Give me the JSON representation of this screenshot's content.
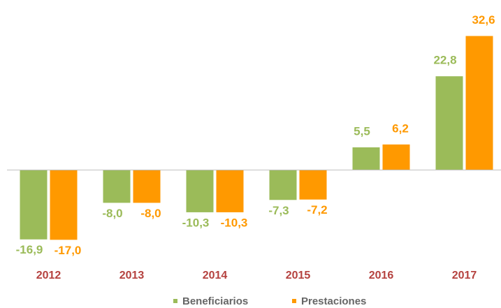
{
  "chart_data": {
    "type": "bar",
    "categories": [
      "2012",
      "2013",
      "2014",
      "2015",
      "2016",
      "2017"
    ],
    "series": [
      {
        "name": "Beneficiarios",
        "color": "#9bbb59",
        "values": [
          -16.9,
          -8.0,
          -10.3,
          -7.3,
          5.5,
          22.8
        ],
        "value_labels": [
          "-16,9",
          "-8,0",
          "-10,3",
          "-7,3",
          "5,5",
          "22,8"
        ]
      },
      {
        "name": "Prestaciones",
        "color": "#ff9900",
        "values": [
          -17.0,
          -8.0,
          -10.3,
          -7.2,
          6.2,
          32.6
        ],
        "value_labels": [
          "-17,0",
          "-8,0",
          "-10,3",
          "-7,2",
          "6,2",
          "32,6"
        ]
      }
    ],
    "ylim": [
      -20,
      40
    ],
    "legend": "bottom"
  }
}
